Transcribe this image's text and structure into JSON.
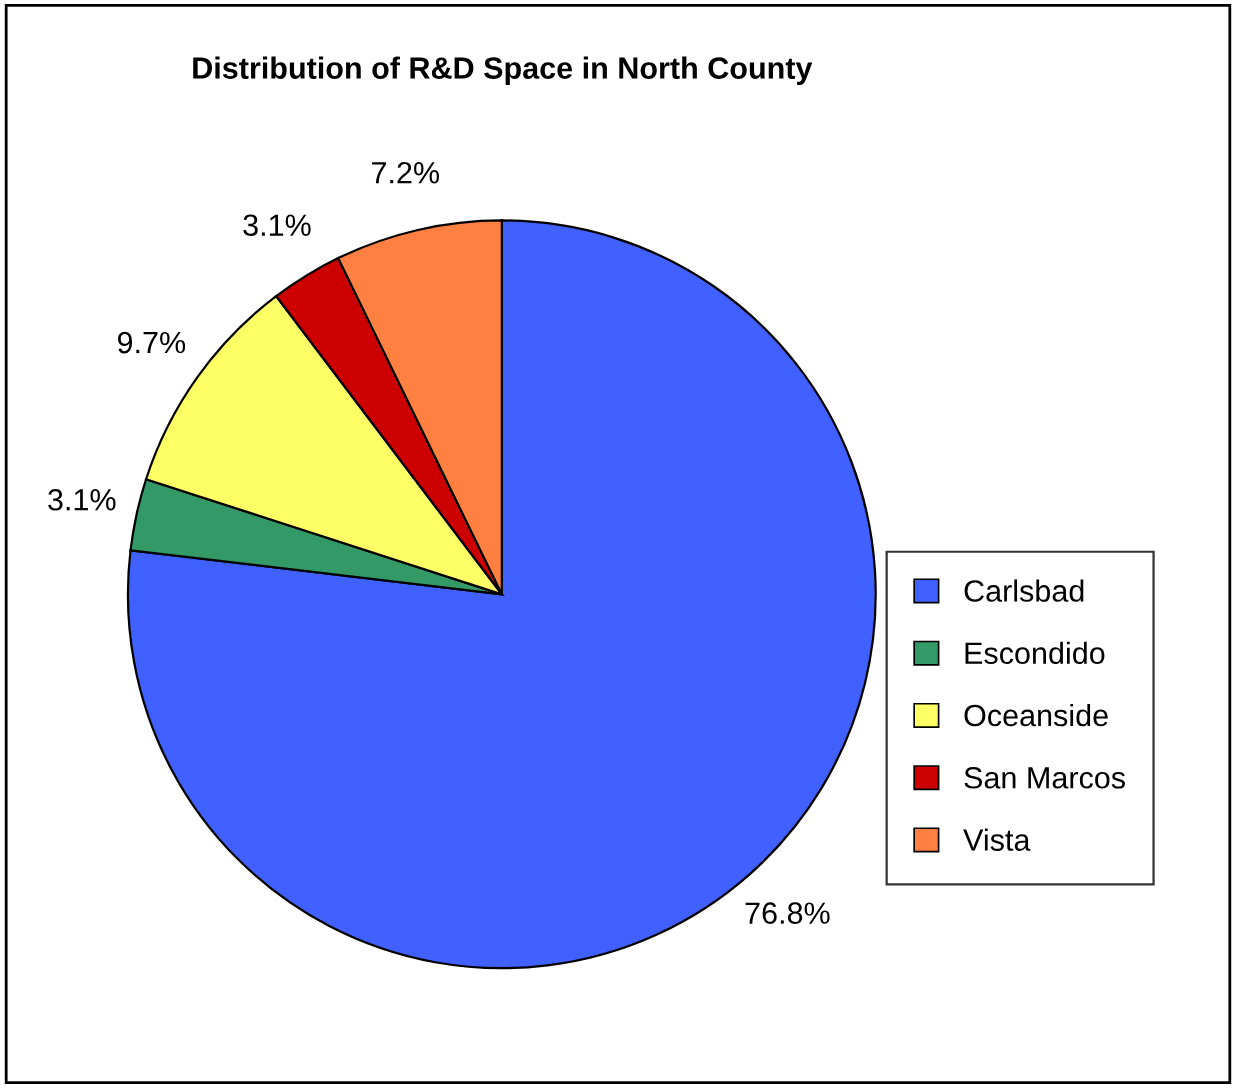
{
  "chart_data": {
    "type": "pie",
    "title": "Distribution of R&D Space in North County",
    "categories": [
      "Carlsbad",
      "Escondido",
      "Oceanside",
      "San Marcos",
      "Vista"
    ],
    "values": [
      76.8,
      3.1,
      9.7,
      3.1,
      7.2
    ],
    "value_labels": [
      "76.8%",
      "3.1%",
      "9.7%",
      "3.1%",
      "7.2%"
    ],
    "colors": [
      "#4060ff",
      "#339966",
      "#ffff66",
      "#cc0000",
      "#ff8040"
    ],
    "legend": "right"
  }
}
